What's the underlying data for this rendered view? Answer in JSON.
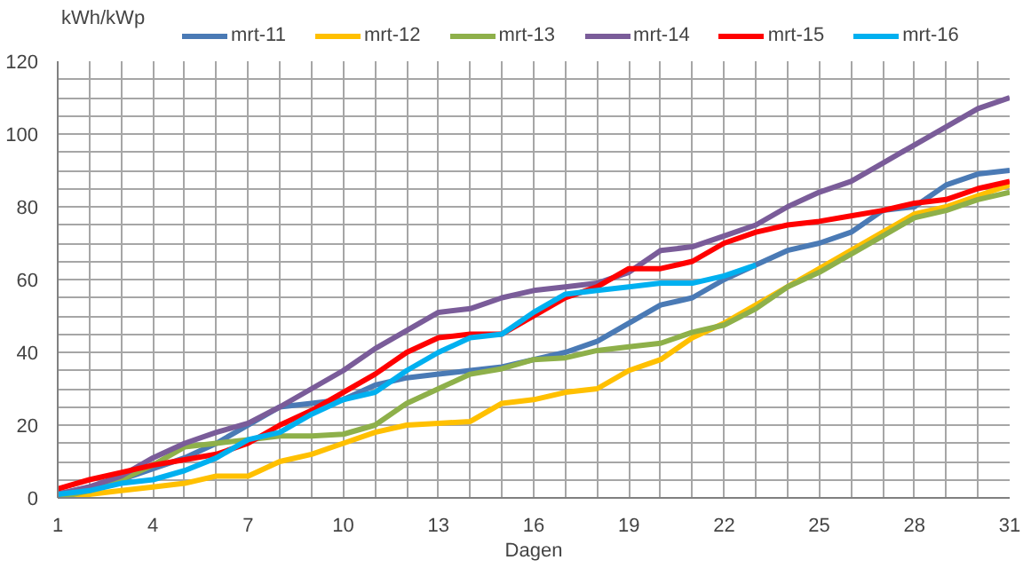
{
  "chart_data": {
    "type": "line",
    "ylabel": "kWh/kWp",
    "xlabel": "Dagen",
    "x": [
      1,
      2,
      3,
      4,
      5,
      6,
      7,
      8,
      9,
      10,
      11,
      12,
      13,
      14,
      15,
      16,
      17,
      18,
      19,
      20,
      21,
      22,
      23,
      24,
      25,
      26,
      27,
      28,
      29,
      30,
      31
    ],
    "series": [
      {
        "name": "mrt-11",
        "color": "#4a7ab5",
        "values": [
          1,
          3,
          5,
          8,
          11,
          15,
          20,
          25,
          26,
          27,
          31,
          33,
          34,
          35,
          36,
          38,
          40,
          43,
          48,
          53,
          55,
          60,
          64,
          68,
          70,
          73,
          79,
          80,
          86,
          89,
          90
        ]
      },
      {
        "name": "mrt-12",
        "color": "#ffc000",
        "values": [
          0,
          1,
          2,
          3,
          4,
          6,
          6,
          10,
          12,
          15,
          18,
          20,
          20.5,
          21,
          26,
          27,
          29,
          30,
          35,
          38,
          44,
          48,
          53,
          58,
          63,
          68,
          73,
          78,
          80,
          83,
          86
        ]
      },
      {
        "name": "mrt-13",
        "color": "#8eb04a",
        "values": [
          0,
          2,
          5,
          9,
          14,
          15,
          16,
          17,
          17,
          17.5,
          20,
          26,
          30,
          34,
          35.5,
          38,
          38.5,
          40.5,
          41.5,
          42.5,
          45.5,
          47.5,
          52,
          58,
          62,
          67,
          72,
          77,
          79,
          82,
          84
        ]
      },
      {
        "name": "mrt-14",
        "color": "#7a5c99",
        "values": [
          1,
          3,
          6,
          11,
          15,
          18,
          20.5,
          25,
          30,
          35,
          41,
          46,
          51,
          52,
          55,
          57,
          58,
          59,
          62,
          68,
          69,
          72,
          75,
          80,
          84,
          87,
          92,
          97,
          102,
          107,
          110
        ]
      },
      {
        "name": "mrt-15",
        "color": "#ff0000",
        "values": [
          2.5,
          5,
          7,
          9,
          10.5,
          12,
          15,
          20,
          24,
          29,
          34,
          40,
          44,
          45,
          45,
          50,
          55,
          58,
          63,
          63,
          65,
          70,
          73,
          75,
          76,
          77.5,
          79,
          81,
          82,
          85,
          87
        ]
      },
      {
        "name": "mrt-16",
        "color": "#00b0f0",
        "values": [
          1,
          2,
          4,
          5,
          7.5,
          11,
          16,
          18,
          23,
          27,
          29,
          35,
          40,
          44,
          45,
          51,
          56,
          57,
          58,
          59,
          59,
          61,
          64,
          null,
          null,
          null,
          null,
          null,
          null,
          null,
          null
        ]
      }
    ],
    "xlim": [
      1,
      31
    ],
    "xticks": [
      1,
      {
        "value": 2,
        "label": null
      },
      {
        "value": 3,
        "label": null
      },
      4,
      {
        "value": 5,
        "label": null
      },
      {
        "value": 6,
        "label": null
      },
      7,
      {
        "value": 8,
        "label": null
      },
      {
        "value": 9,
        "label": null
      },
      10,
      {
        "value": 11,
        "label": null
      },
      {
        "value": 12,
        "label": null
      },
      13,
      {
        "value": 14,
        "label": null
      },
      {
        "value": 15,
        "label": null
      },
      16,
      {
        "value": 17,
        "label": null
      },
      {
        "value": 18,
        "label": null
      },
      19,
      {
        "value": 20,
        "label": null
      },
      {
        "value": 21,
        "label": null
      },
      22,
      {
        "value": 23,
        "label": null
      },
      {
        "value": 24,
        "label": null
      },
      25,
      {
        "value": 26,
        "label": null
      },
      {
        "value": 27,
        "label": null
      },
      28,
      {
        "value": 29,
        "label": null
      },
      {
        "value": 30,
        "label": null
      },
      31
    ],
    "ylim": [
      0,
      120
    ],
    "yticks": [
      0,
      {
        "value": 5,
        "label": null
      },
      {
        "value": 10,
        "label": null
      },
      {
        "value": 15,
        "label": null
      },
      20,
      {
        "value": 25,
        "label": null
      },
      {
        "value": 30,
        "label": null
      },
      {
        "value": 35,
        "label": null
      },
      40,
      {
        "value": 45,
        "label": null
      },
      {
        "value": 50,
        "label": null
      },
      {
        "value": 55,
        "label": null
      },
      60,
      {
        "value": 65,
        "label": null
      },
      {
        "value": 70,
        "label": null
      },
      {
        "value": 75,
        "label": null
      },
      80,
      {
        "value": 85,
        "label": null
      },
      {
        "value": 90,
        "label": null
      },
      {
        "value": 95,
        "label": null
      },
      100,
      {
        "value": 105,
        "label": null
      },
      {
        "value": 110,
        "label": null
      },
      {
        "value": 115,
        "label": null
      },
      120
    ],
    "grid": true,
    "legend": "top",
    "marker": "none",
    "line_style": "solid"
  }
}
